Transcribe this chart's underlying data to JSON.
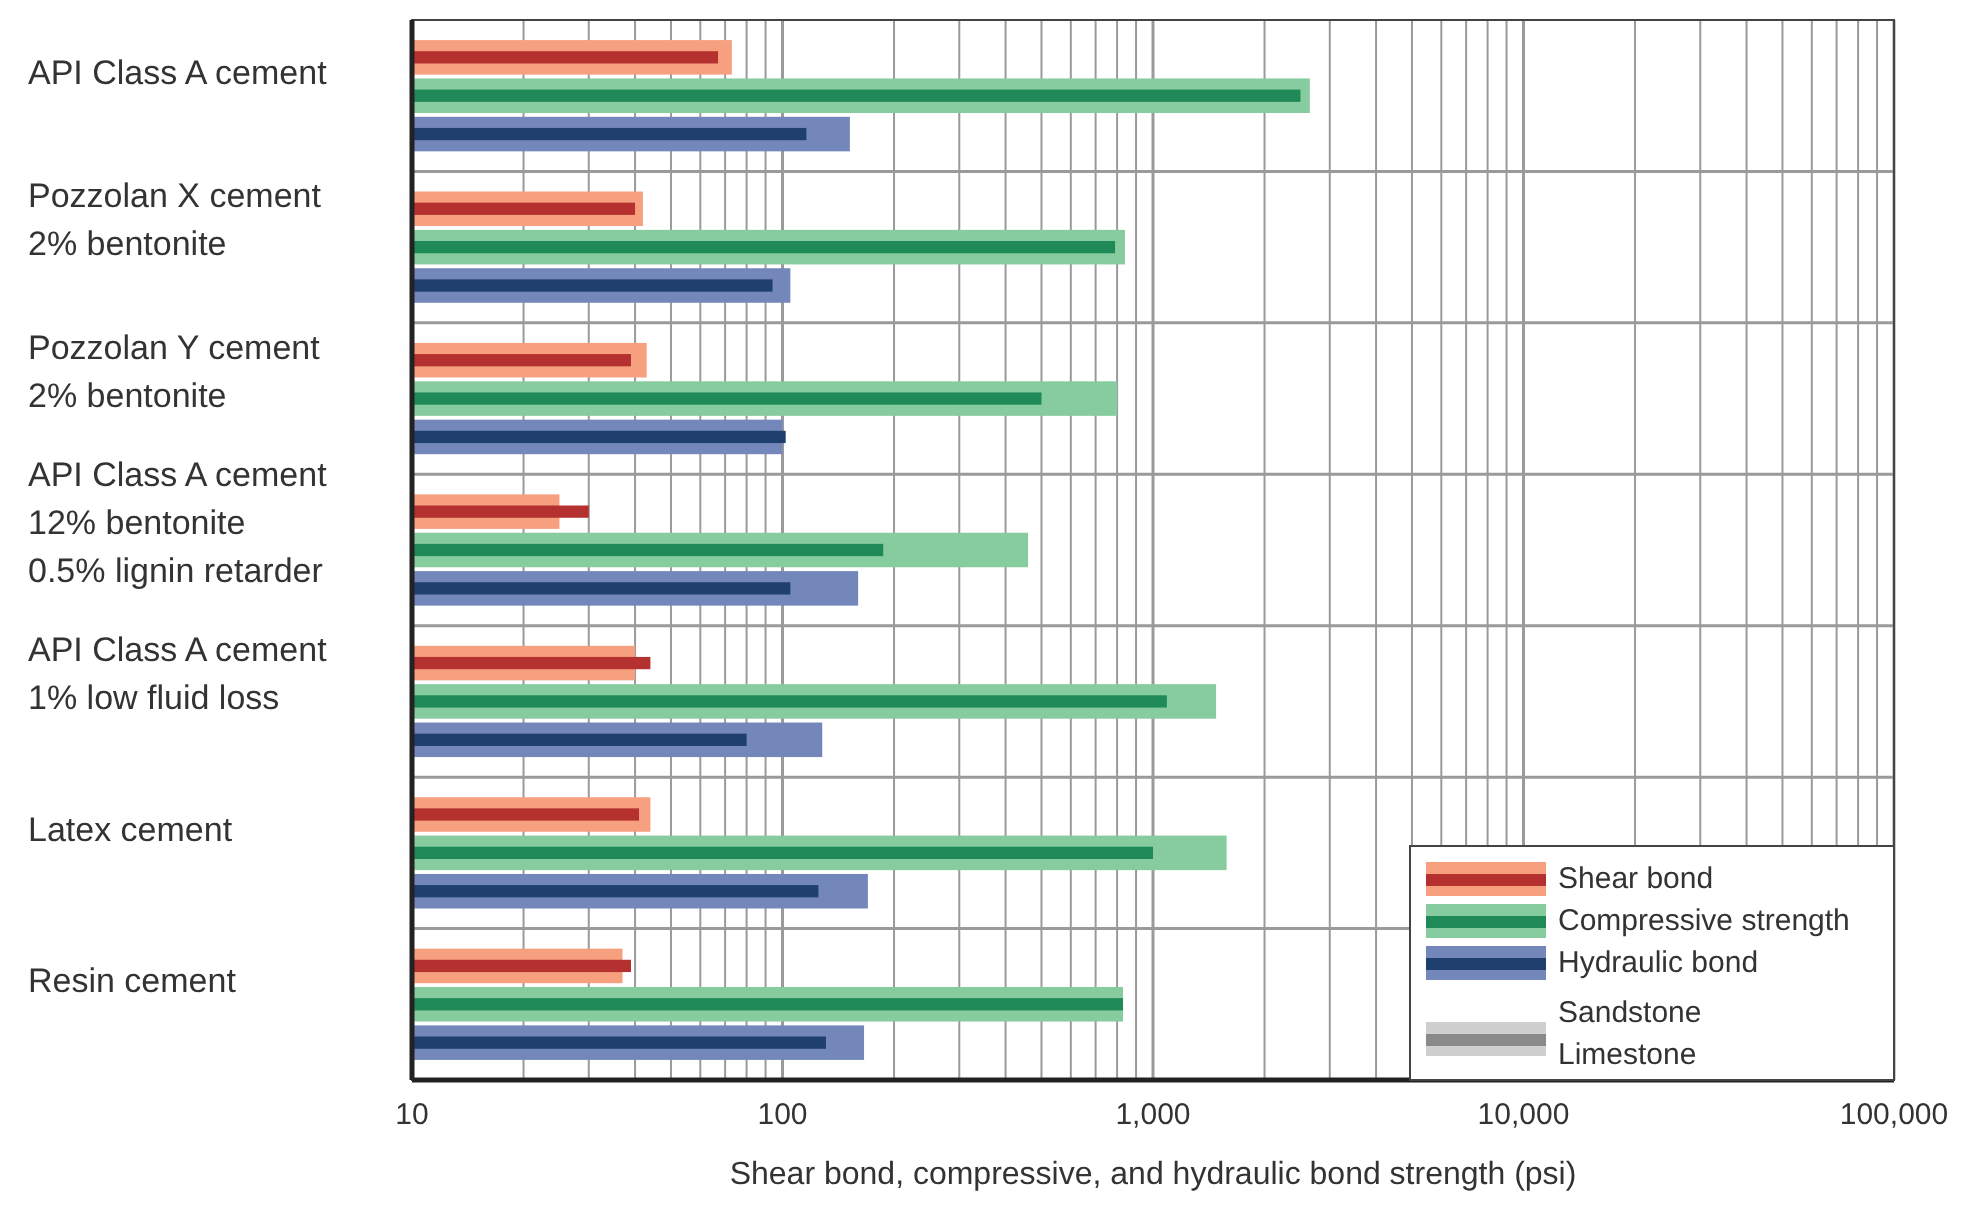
{
  "chart_data": {
    "type": "bar",
    "orientation": "horizontal",
    "log": "x",
    "grid": true,
    "legend": "bottom right",
    "xlabel": "Shear bond, compressive, and hydraulic bond strength (psi)",
    "categories": [
      "API Class A cement",
      "Pozzolan X cement\n2% bentonite",
      "Pozzolan Y cement\n2% bentonite",
      "API Class A cement\n12% bentonite\n0.5% lignin retarder",
      "API Class A cement\n1% low fluid loss",
      "Latex cement",
      "Resin cement"
    ],
    "xlim": [
      10,
      100000
    ],
    "xticks": [
      10,
      {
        "value": 20,
        "label": null
      },
      {
        "value": 30,
        "label": null
      },
      {
        "value": 40,
        "label": null
      },
      {
        "value": 50,
        "label": null
      },
      {
        "value": 60,
        "label": null
      },
      {
        "value": 70,
        "label": null
      },
      {
        "value": 80,
        "label": null
      },
      {
        "value": 90,
        "label": null
      },
      100,
      {
        "value": 200,
        "label": null
      },
      {
        "value": 300,
        "label": null
      },
      {
        "value": 400,
        "label": null
      },
      {
        "value": 500,
        "label": null
      },
      {
        "value": 600,
        "label": null
      },
      {
        "value": 700,
        "label": null
      },
      {
        "value": 800,
        "label": null
      },
      {
        "value": 900,
        "label": null
      },
      {
        "value": 1000,
        "label": "1,000"
      },
      {
        "value": 2000,
        "label": null
      },
      {
        "value": 3000,
        "label": null
      },
      {
        "value": 4000,
        "label": null
      },
      {
        "value": 5000,
        "label": null
      },
      {
        "value": 6000,
        "label": null
      },
      {
        "value": 7000,
        "label": null
      },
      {
        "value": 8000,
        "label": null
      },
      {
        "value": 9000,
        "label": null
      },
      {
        "value": 10000,
        "label": "10,000"
      },
      {
        "value": 20000,
        "label": null
      },
      {
        "value": 30000,
        "label": null
      },
      {
        "value": 40000,
        "label": null
      },
      {
        "value": 50000,
        "label": null
      },
      {
        "value": 60000,
        "label": null
      },
      {
        "value": 70000,
        "label": null
      },
      {
        "value": 80000,
        "label": null
      },
      {
        "value": 90000,
        "label": null
      },
      {
        "value": 100000,
        "label": "100,000"
      }
    ],
    "series": [
      {
        "name": "Shear bond",
        "color": "#f7a07f",
        "values": [
          73,
          42,
          43,
          25,
          40,
          44,
          37
        ]
      },
      {
        "color": "#b5312f",
        "values": [
          67,
          40,
          39,
          30,
          44,
          41,
          39
        ]
      },
      {
        "name": "Compressive strength",
        "color": "#86cc9e",
        "values": [
          2650,
          840,
          800,
          460,
          1480,
          1580,
          830
        ]
      },
      {
        "color": "#1f8a57",
        "values": [
          2500,
          790,
          500,
          187,
          1090,
          1000,
          830
        ]
      },
      {
        "name": "Hydraulic bond",
        "color": "#7487bb",
        "values": [
          152,
          105,
          100,
          160,
          128,
          170,
          166
        ]
      },
      {
        "color": "#1f3f6e",
        "values": [
          116,
          94,
          102,
          105,
          80,
          125,
          131
        ]
      }
    ],
    "annotations": [
      "Sandstone",
      "Limestone"
    ]
  }
}
